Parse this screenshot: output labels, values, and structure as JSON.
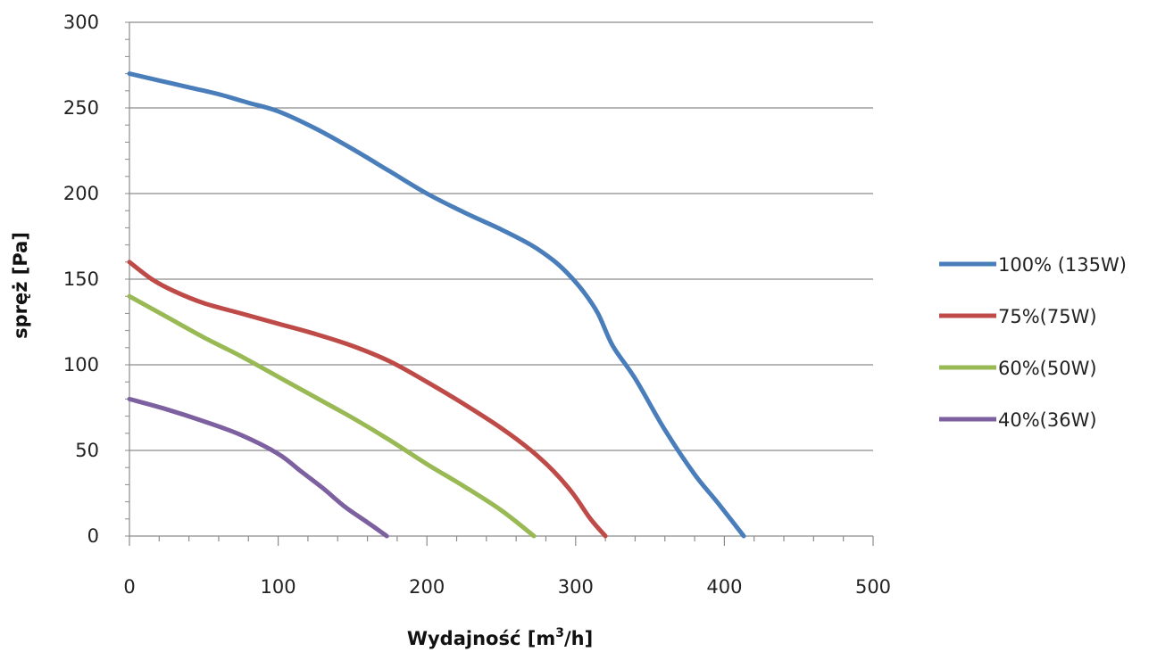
{
  "chart_data": {
    "type": "line",
    "title": "",
    "xlabel_main": "Wydajność [m",
    "xlabel_sup": "3",
    "xlabel_end": "/h]",
    "ylabel": "spręż [Pa]",
    "xlim": [
      0,
      500
    ],
    "ylim": [
      0,
      300
    ],
    "x_ticks": [
      0,
      100,
      200,
      300,
      400,
      500
    ],
    "y_ticks": [
      0,
      50,
      100,
      150,
      200,
      250,
      300
    ],
    "grid": "horizontal",
    "legend_position": "right",
    "series": [
      {
        "name": "100% (135W)",
        "color": "#4a7ebb",
        "points": [
          [
            0,
            270
          ],
          [
            20,
            266
          ],
          [
            40,
            262
          ],
          [
            60,
            258
          ],
          [
            80,
            253
          ],
          [
            100,
            248
          ],
          [
            125,
            238
          ],
          [
            150,
            226
          ],
          [
            175,
            213
          ],
          [
            200,
            200
          ],
          [
            225,
            189
          ],
          [
            250,
            179
          ],
          [
            270,
            170
          ],
          [
            285,
            161
          ],
          [
            295,
            153
          ],
          [
            305,
            143
          ],
          [
            315,
            130
          ],
          [
            325,
            111
          ],
          [
            340,
            92
          ],
          [
            360,
            62
          ],
          [
            380,
            36
          ],
          [
            395,
            20
          ],
          [
            413,
            0
          ]
        ]
      },
      {
        "name": "75%(75W)",
        "color": "#be4b48",
        "points": [
          [
            0,
            160
          ],
          [
            15,
            150
          ],
          [
            30,
            143
          ],
          [
            50,
            136
          ],
          [
            75,
            130
          ],
          [
            100,
            124
          ],
          [
            125,
            118
          ],
          [
            150,
            111
          ],
          [
            175,
            102
          ],
          [
            200,
            90
          ],
          [
            225,
            77
          ],
          [
            250,
            63
          ],
          [
            270,
            50
          ],
          [
            285,
            38
          ],
          [
            298,
            25
          ],
          [
            310,
            10
          ],
          [
            320,
            0
          ]
        ]
      },
      {
        "name": "60%(50W)",
        "color": "#98b954",
        "points": [
          [
            0,
            140
          ],
          [
            25,
            128
          ],
          [
            50,
            116
          ],
          [
            75,
            105
          ],
          [
            100,
            93
          ],
          [
            125,
            81
          ],
          [
            150,
            69
          ],
          [
            175,
            56
          ],
          [
            200,
            42
          ],
          [
            225,
            29
          ],
          [
            250,
            15
          ],
          [
            272,
            0
          ]
        ]
      },
      {
        "name": "40%(36W)",
        "color": "#7d60a0",
        "points": [
          [
            0,
            80
          ],
          [
            25,
            74
          ],
          [
            50,
            67
          ],
          [
            75,
            59
          ],
          [
            100,
            48
          ],
          [
            115,
            38
          ],
          [
            130,
            28
          ],
          [
            145,
            17
          ],
          [
            160,
            8
          ],
          [
            173,
            0
          ]
        ]
      }
    ]
  }
}
